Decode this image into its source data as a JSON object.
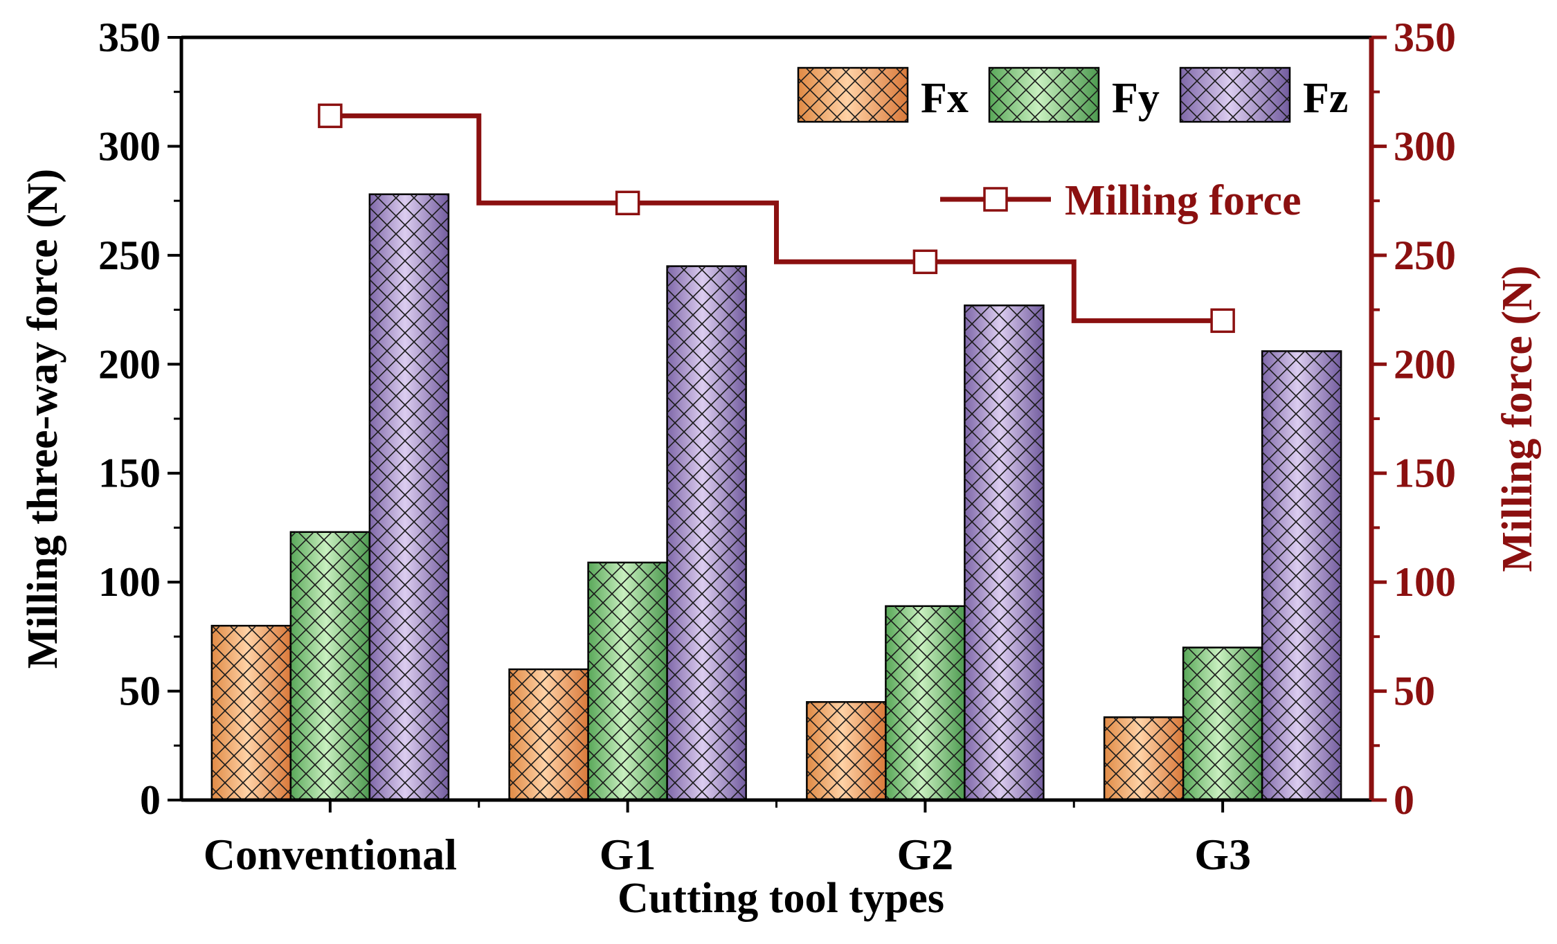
{
  "chart_data": {
    "type": "bar",
    "categories": [
      "Conventional",
      "G1",
      "G2",
      "G3"
    ],
    "series": [
      {
        "name": "Fx",
        "values": [
          80,
          60,
          45,
          38
        ],
        "color": "#f4a86a"
      },
      {
        "name": "Fy",
        "values": [
          123,
          109,
          89,
          70
        ],
        "color": "#8fd08a"
      },
      {
        "name": "Fz",
        "values": [
          278,
          245,
          227,
          206
        ],
        "color": "#a58fc6"
      }
    ],
    "line_series": {
      "name": "Milling force",
      "values": [
        314,
        274,
        247,
        220
      ],
      "color": "#8b1010",
      "marker": "open-square",
      "step": true
    },
    "xlabel": "Cutting tool types",
    "ylabel": "Milling three-way force (N)",
    "y2label": "Milling force (N)",
    "ylim": [
      0,
      350
    ],
    "y2lim": [
      0,
      350
    ],
    "yticks": [
      "0",
      "50",
      "100",
      "150",
      "200",
      "250",
      "300",
      "350"
    ],
    "pattern": "crosshatch",
    "grid": false,
    "legend_placement": "top-right"
  }
}
